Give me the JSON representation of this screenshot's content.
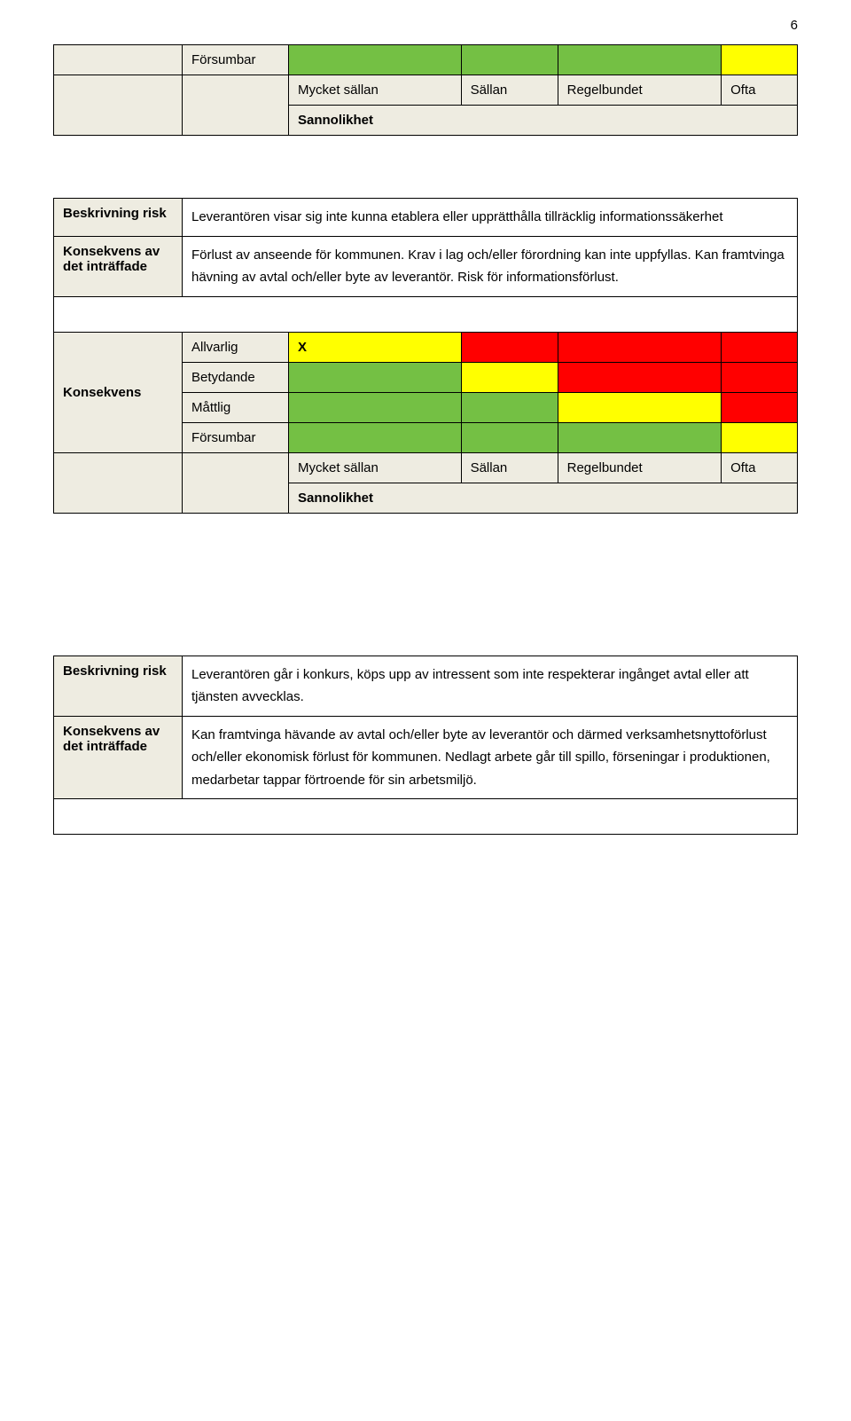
{
  "page_number": "6",
  "colors": {
    "beige": "#eeece1",
    "green": "#74c044",
    "yellow": "#ffff00",
    "red": "#ff0000",
    "border": "#000000",
    "background": "#ffffff",
    "text": "#000000"
  },
  "matrix1": {
    "levels": {
      "forsumbar": "Försumbar"
    },
    "freq": {
      "mycket_sallan": "Mycket sällan",
      "sallan": "Sällan",
      "regelbundet": "Regelbundet",
      "ofta": "Ofta"
    },
    "sannolikhet": "Sannolikhet",
    "row_colors": {
      "forsumbar": [
        "green",
        "green",
        "green",
        "yellow"
      ]
    }
  },
  "desc1": {
    "beskrivning_label": "Beskrivning risk",
    "beskrivning_text": "Leverantören visar sig inte kunna etablera eller upprätthålla tillräcklig informationssäkerhet",
    "konsekvens_label": "Konsekvens av det inträffade",
    "konsekvens_text": "Förlust av anseende för kommunen. Krav i lag och/eller förordning kan inte uppfyllas. Kan framtvinga hävning av avtal och/eller byte av leverantör. Risk för informationsförlust."
  },
  "matrix2": {
    "konsekvens_label": "Konsekvens",
    "levels": {
      "allvarlig": "Allvarlig",
      "betydande": "Betydande",
      "mattlig": "Måttlig",
      "forsumbar": "Försumbar"
    },
    "marker": "X",
    "freq": {
      "mycket_sallan": "Mycket sällan",
      "sallan": "Sällan",
      "regelbundet": "Regelbundet",
      "ofta": "Ofta"
    },
    "sannolikhet": "Sannolikhet",
    "row_colors": {
      "allvarlig": [
        "yellow",
        "red",
        "red",
        "red"
      ],
      "betydande": [
        "green",
        "yellow",
        "red",
        "red"
      ],
      "mattlig": [
        "green",
        "green",
        "yellow",
        "red"
      ],
      "forsumbar": [
        "green",
        "green",
        "green",
        "yellow"
      ]
    }
  },
  "desc2": {
    "beskrivning_label": "Beskrivning risk",
    "beskrivning_text": "Leverantören går i konkurs, köps upp av intressent som inte respekterar ingånget avtal eller att tjänsten avvecklas.",
    "konsekvens_label": "Konsekvens av det inträffade",
    "konsekvens_text": "Kan framtvinga hävande av avtal och/eller byte av leverantör och därmed verksamhetsnyttoförlust och/eller ekonomisk förlust för kommunen. Nedlagt arbete går till spillo, förseningar i produktionen, medarbetar tappar förtroende för sin arbetsmiljö."
  }
}
